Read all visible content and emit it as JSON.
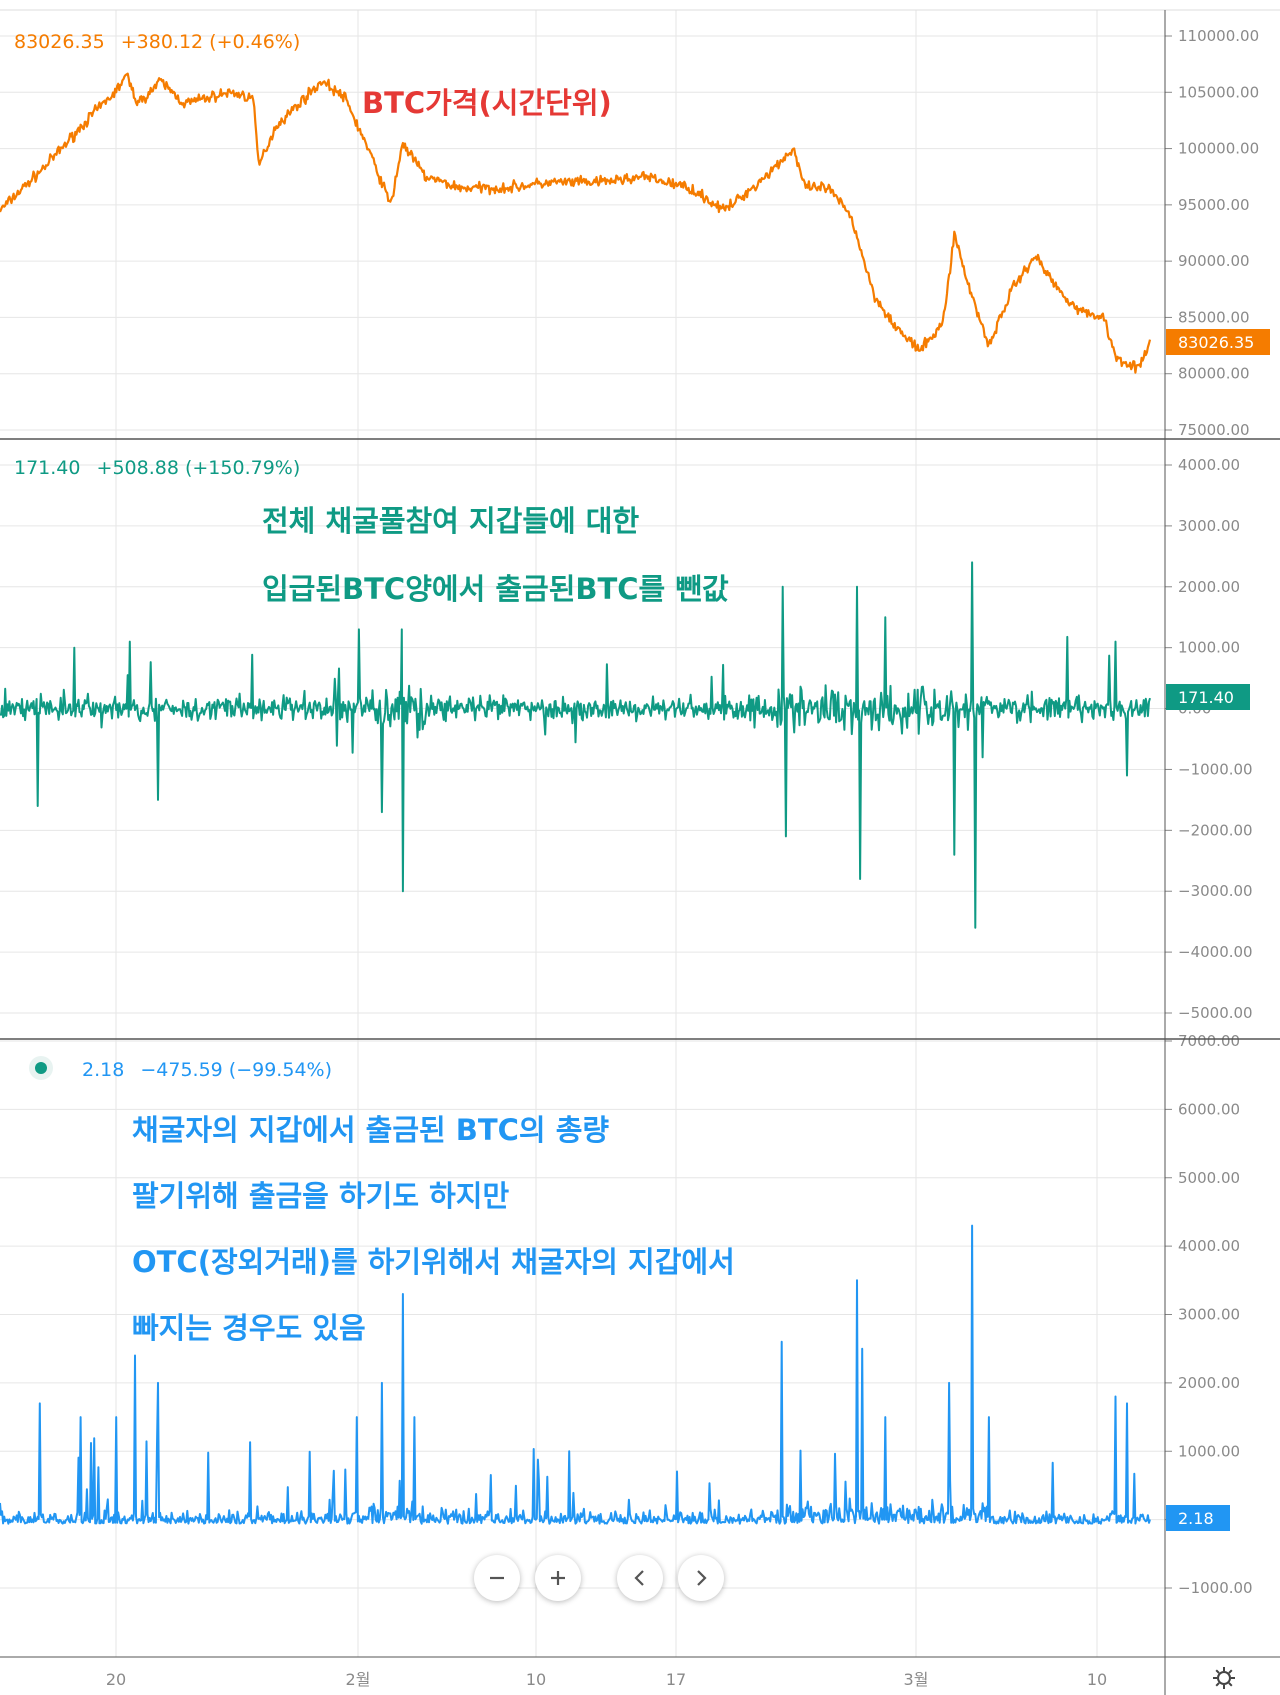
{
  "colors": {
    "price": "#f57c00",
    "netflow": "#0f9a84",
    "outflow": "#2196f3",
    "annotation_price": "#e53935",
    "grid": "#e6e6e6",
    "separator": "#555555",
    "axis_text": "#8a8a8a"
  },
  "time_axis": {
    "labels": [
      "20",
      "2월",
      "10",
      "17",
      "3월",
      "10"
    ]
  },
  "panels": {
    "price": {
      "legend": {
        "value": "83026.35",
        "change": "+380.12 (+0.46%)"
      },
      "annotation": "BTC가격(시간단위)",
      "last_tag": "83026.35"
    },
    "netflow": {
      "legend": {
        "value": "171.40",
        "change": "+508.88 (+150.79%)"
      },
      "annotation_lines": [
        "전체 채굴풀참여 지갑들에 대한",
        "입급된BTC양에서 출금된BTC를 뺀값"
      ],
      "last_tag": "171.40"
    },
    "outflow": {
      "legend": {
        "value": "2.18",
        "change": "−475.59 (−99.54%)"
      },
      "annotation_lines": [
        "채굴자의 지갑에서 출금된 BTC의 총량",
        "팔기위해 출금을 하기도 하지만",
        "OTC(장외거래)를 하기위해서 채굴자의 지갑에서",
        "빠지는 경우도 있음"
      ],
      "last_tag": "2.18"
    }
  },
  "controls": {
    "zoom_out_icon": "minus-icon",
    "zoom_in_icon": "plus-icon",
    "scroll_left_icon": "chevron-left-icon",
    "scroll_right_icon": "chevron-right-icon",
    "settings_icon": "gear-icon"
  },
  "chart_data": [
    {
      "type": "line",
      "series": [
        {
          "name": "",
          "color": "#f57c00"
        }
      ],
      "ylim": [
        75000,
        110000
      ],
      "y_ticks": [
        "110000.00",
        "105000.00",
        "100000.00",
        "95000.00",
        "90000.00",
        "85000.00",
        "80000.00",
        "75000.00"
      ],
      "last_value": 83026.35,
      "anchors": {
        "x": [
          0,
          0.04,
          0.08,
          0.1,
          0.11,
          0.12,
          0.14,
          0.16,
          0.18,
          0.2,
          0.22,
          0.225,
          0.24,
          0.26,
          0.28,
          0.3,
          0.32,
          0.34,
          0.35,
          0.37,
          0.4,
          0.44,
          0.48,
          0.52,
          0.56,
          0.6,
          0.63,
          0.66,
          0.69,
          0.7,
          0.72,
          0.74,
          0.76,
          0.78,
          0.8,
          0.82,
          0.83,
          0.84,
          0.86,
          0.88,
          0.9,
          0.92,
          0.94,
          0.96,
          0.97,
          0.99,
          1
        ],
        "y": [
          94500,
          98500,
          103000,
          105000,
          106500,
          104000,
          106000,
          104000,
          104500,
          105000,
          104500,
          98500,
          102000,
          104000,
          106000,
          104500,
          100000,
          95000,
          100500,
          97500,
          96500,
          96500,
          97000,
          97000,
          97500,
          96500,
          94500,
          97000,
          100000,
          96500,
          96500,
          94000,
          87000,
          84000,
          82000,
          84500,
          92500,
          88500,
          82500,
          87500,
          90500,
          87500,
          85500,
          85000,
          81500,
          80500,
          82500
        ]
      }
    },
    {
      "type": "bar",
      "series": [
        {
          "name": "",
          "color": "#0f9a84"
        }
      ],
      "ylim": [
        -5000,
        4000
      ],
      "y_ticks": [
        "4000.00",
        "3000.00",
        "2000.00",
        "1000.00",
        "0.00",
        "−1000.00",
        "−2000.00",
        "−3000.00",
        "−4000.00",
        "−5000.00"
      ],
      "last_value": 171.4,
      "spikes": {
        "x": [
          0.033,
          0.065,
          0.113,
          0.137,
          0.312,
          0.332,
          0.349,
          0.35,
          0.681,
          0.683,
          0.745,
          0.748,
          0.77,
          0.83,
          0.845,
          0.848,
          0.97,
          0.98
        ],
        "y": [
          -1600,
          1000,
          1100,
          -1500,
          1300,
          -1700,
          1300,
          -3000,
          2000,
          -2100,
          2000,
          -2800,
          1500,
          -2400,
          2400,
          -3600,
          1100,
          -1100
        ]
      }
    },
    {
      "type": "bar",
      "series": [
        {
          "name": "",
          "color": "#2196f3"
        }
      ],
      "ylim": [
        -1500,
        7000
      ],
      "y_ticks": [
        "7000.00",
        "6000.00",
        "5000.00",
        "4000.00",
        "3000.00",
        "2000.00",
        "1000.00",
        "0.00",
        "−1000.00"
      ],
      "last_value": 2.18,
      "spikes": {
        "x": [
          0.035,
          0.07,
          0.101,
          0.117,
          0.137,
          0.31,
          0.332,
          0.35,
          0.36,
          0.495,
          0.68,
          0.745,
          0.75,
          0.77,
          0.825,
          0.845,
          0.86,
          0.97,
          0.98
        ],
        "y": [
          1700,
          1500,
          1500,
          2400,
          2000,
          1500,
          2000,
          3300,
          1500,
          1000,
          2600,
          3500,
          2500,
          1500,
          2000,
          4300,
          1500,
          1800,
          1700
        ]
      }
    }
  ]
}
